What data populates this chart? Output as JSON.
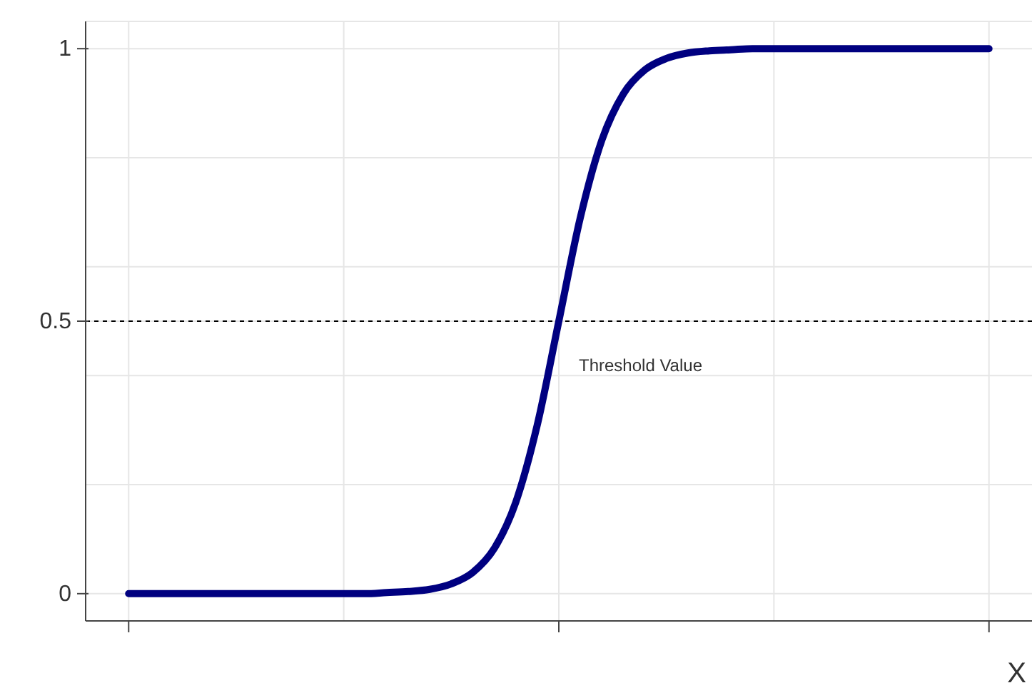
{
  "chart_data": {
    "type": "line",
    "xlabel": "X",
    "categories": [
      null,
      null,
      null,
      null,
      null,
      null,
      null,
      null,
      null,
      null,
      null,
      null,
      null,
      null,
      null,
      null,
      null,
      null,
      null,
      null,
      null,
      null,
      null,
      null,
      null,
      null,
      null,
      null,
      null,
      null,
      null,
      null,
      null,
      null,
      null,
      null,
      null,
      null,
      null,
      null,
      null
    ],
    "series": [
      {
        "color": "#000080",
        "values": [
          0,
          0,
          0,
          0,
          0,
          0,
          0,
          0,
          0,
          0,
          0,
          0,
          0.002,
          0.004,
          0.008,
          0.018,
          0.039,
          0.083,
          0.168,
          0.31,
          0.5,
          0.69,
          0.832,
          0.917,
          0.961,
          0.982,
          0.992,
          0.996,
          0.998,
          1,
          1,
          1,
          1,
          1,
          1,
          1,
          1,
          1,
          1,
          1,
          1
        ]
      }
    ],
    "ylim": [
      -0.05,
      1.05
    ],
    "yticks": [
      0,
      {
        "value": 0.2,
        "label": null
      },
      {
        "value": 0.4,
        "label": null
      },
      0.5,
      {
        "value": 0.6,
        "label": null
      },
      {
        "value": 0.8,
        "label": null
      },
      1
    ],
    "grid": true,
    "marker": "none",
    "line_style": "solid",
    "ref_lines": [
      {
        "axis": "y",
        "value": 0.5,
        "label": "Threshold Value",
        "line_style": "dashed",
        "color": "#000000"
      }
    ]
  }
}
